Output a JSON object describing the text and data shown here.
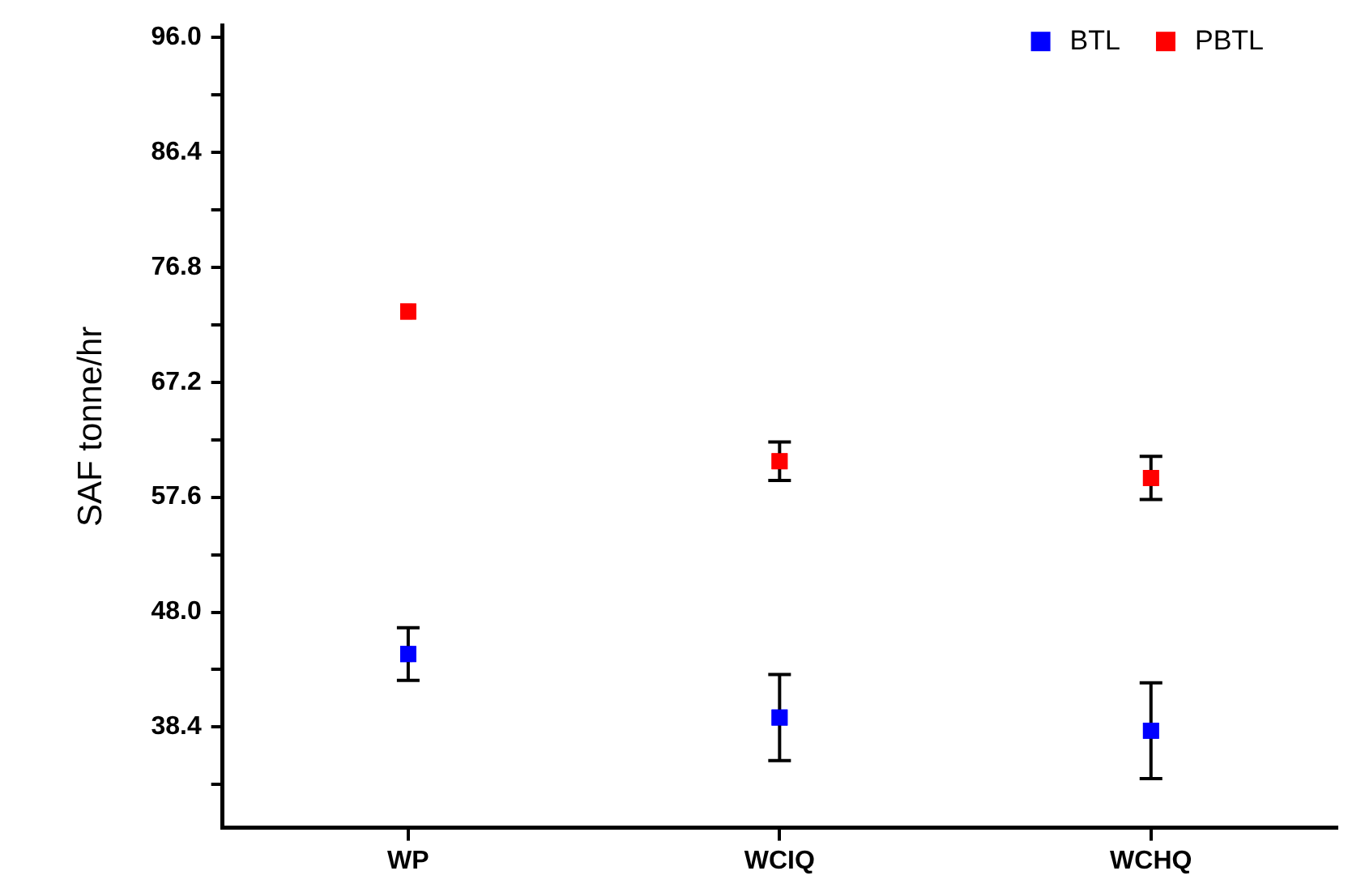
{
  "chart_data": {
    "type": "scatter",
    "ylabel": "SAF tonne/hr",
    "categories": [
      "WP",
      "WCIQ",
      "WCHQ"
    ],
    "series": [
      {
        "name": "BTL",
        "color": "#0000ff",
        "values": [
          44.5,
          39.2,
          38.1
        ],
        "errors": [
          2.2,
          3.6,
          4.0
        ]
      },
      {
        "name": "PBTL",
        "color": "#ff0000",
        "values": [
          73.1,
          60.6,
          59.2
        ],
        "errors": [
          null,
          1.6,
          1.8
        ]
      }
    ],
    "ylim": [
      30,
      97
    ],
    "yticks": [
      {
        "value": 33.6,
        "label": null
      },
      38.4,
      {
        "value": 43.2,
        "label": null
      },
      {
        "value": 48.0,
        "label": "48.0"
      },
      {
        "value": 52.8,
        "label": null
      },
      57.6,
      {
        "value": 62.4,
        "label": null
      },
      67.2,
      {
        "value": 72.0,
        "label": null
      },
      76.8,
      {
        "value": 81.6,
        "label": null
      },
      86.4,
      {
        "value": 91.2,
        "label": null
      },
      {
        "value": 96.0,
        "label": "96.0"
      }
    ],
    "grid": false,
    "legend": "top right",
    "marker": "square"
  }
}
